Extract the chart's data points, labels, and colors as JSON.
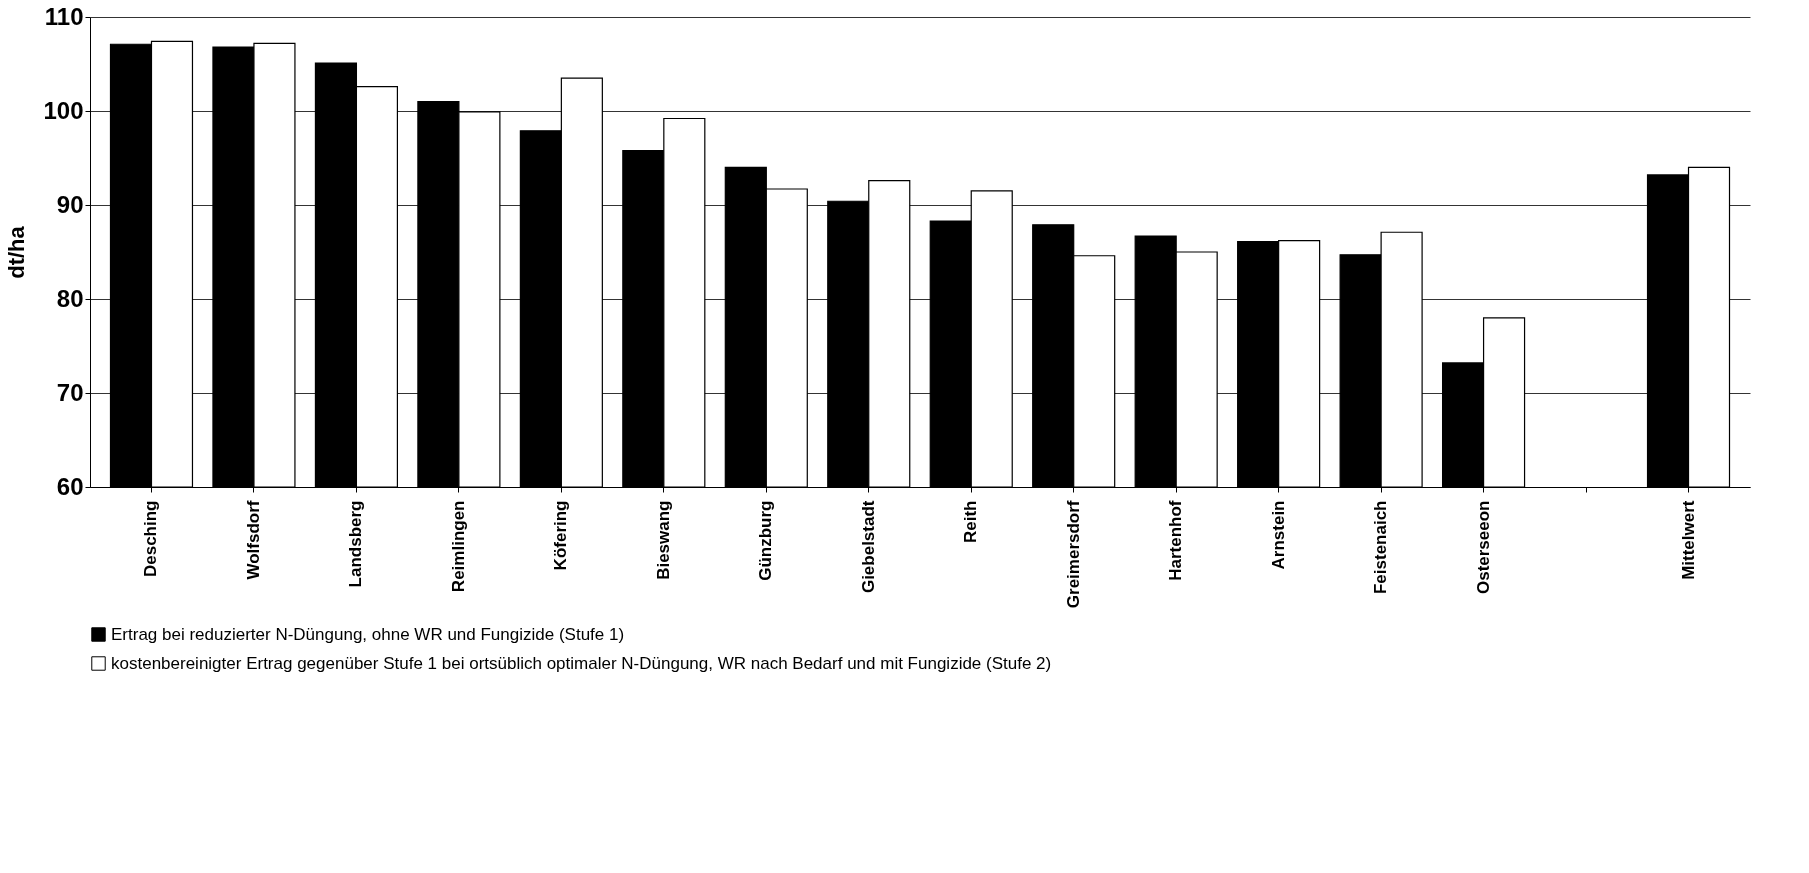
{
  "chart_data": {
    "type": "bar",
    "ylabel": "dt/ha",
    "categories": [
      "Desching",
      "Wolfsdorf",
      "Landsberg",
      "Reimlingen",
      "Köfering",
      "Bieswang",
      "Günzburg",
      "Giebelstadt",
      "Reith",
      "Greimersdorf",
      "Hartenhof",
      "Arnstein",
      "Feistenaich",
      "Osterseeon",
      null,
      "Mittelwert"
    ],
    "series": [
      {
        "name": "Ertrag bei reduzierter N-Düngung, ohne WR und Fungizide (Stufe 1)",
        "color": "#000000",
        "values": [
          107.1,
          106.8,
          105.1,
          101.0,
          97.9,
          95.8,
          94.0,
          90.4,
          88.3,
          87.9,
          86.7,
          86.1,
          84.7,
          73.2,
          null,
          93.2
        ]
      },
      {
        "name": "kostenbereinigter Ertrag gegenüber Stufe 1 bei ortsüblich optimaler N-Düngung, WR nach Bedarf und mit Fungizide (Stufe 2)",
        "color": "#ffffff",
        "values": [
          107.4,
          107.2,
          102.6,
          99.9,
          103.5,
          99.2,
          91.7,
          92.6,
          91.5,
          84.6,
          85.0,
          86.2,
          87.1,
          78.0,
          null,
          94.0
        ]
      }
    ],
    "ylim": [
      60,
      110
    ],
    "yticks": [
      60,
      70,
      80,
      90,
      100,
      110
    ],
    "grid": "y",
    "legend": "bottom"
  }
}
